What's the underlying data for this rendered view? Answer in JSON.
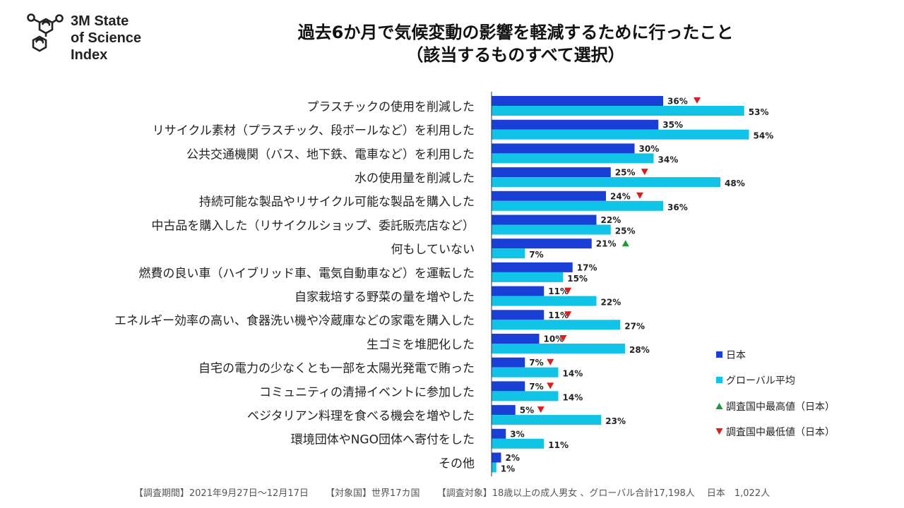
{
  "logo": {
    "line1": "3M State",
    "line2": "of Science",
    "line3": "Index"
  },
  "title": {
    "line1": "過去6か月で気候変動の影響を軽減するために行ったこと",
    "line2": "（該当するものすべて選択）"
  },
  "colors": {
    "japan": "#1a3fd6",
    "global": "#12c3e8",
    "high": "#1a9a3a",
    "low": "#e01b1b"
  },
  "chart_data": {
    "type": "bar",
    "orientation": "horizontal",
    "categories": [
      "プラスチックの使用を削減した",
      "リサイクル素材（プラスチック、段ボールなど）を利用した",
      "公共交通機関（バス、地下鉄、電車など）を利用した",
      "水の使用量を削減した",
      "持続可能な製品やリサイクル可能な製品を購入した",
      "中古品を購入した（リサイクルショップ、委託販売店など）",
      "何もしていない",
      "燃費の良い車（ハイブリッド車、電気自動車など）を運転した",
      "自家栽培する野菜の量を増やした",
      "エネルギー効率の高い、食器洗い機や冷蔵庫などの家電を購入した",
      "生ゴミを堆肥化した",
      "自宅の電力の少なくとも一部を太陽光発電で賄った",
      "コミュニティの清掃イベントに参加した",
      "ベジタリアン料理を食べる機会を増やした",
      "環境団体やNGO団体へ寄付をした",
      "その他"
    ],
    "series": [
      {
        "name": "日本",
        "values": [
          36,
          35,
          30,
          25,
          24,
          22,
          21,
          17,
          11,
          11,
          10,
          7,
          7,
          5,
          3,
          2
        ]
      },
      {
        "name": "グローバル平均",
        "values": [
          53,
          54,
          34,
          48,
          36,
          25,
          7,
          15,
          22,
          27,
          28,
          14,
          14,
          23,
          11,
          1
        ]
      }
    ],
    "markers": [
      "low",
      "",
      "",
      "low",
      "low",
      "",
      "high",
      "",
      "low",
      "low",
      "low",
      "low",
      "low",
      "low",
      "",
      ""
    ],
    "value_suffix": "%",
    "xlim": [
      0,
      55
    ],
    "legend": [
      {
        "label": "日本",
        "kind": "japan"
      },
      {
        "label": "グローバル平均",
        "kind": "global"
      },
      {
        "label": "調査国中最高値（日本）",
        "kind": "high"
      },
      {
        "label": "調査国中最低値（日本）",
        "kind": "low"
      }
    ],
    "legend_position": "right"
  },
  "footer": {
    "period": "【調査期間】2021年9月27日～12月17日",
    "countries": "【対象国】世界17カ国",
    "target": "【調査対象】18歳以上の成人男女 、グローバル合計17,198人　 日本　1,022人"
  }
}
